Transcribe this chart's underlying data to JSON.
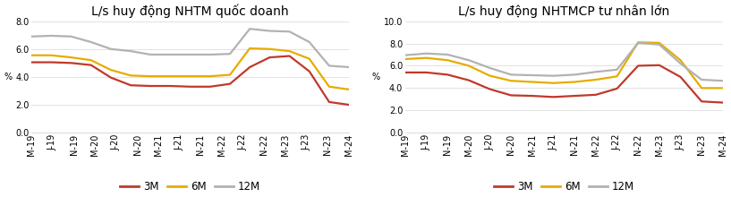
{
  "chart1": {
    "title": "L/s huy động NHTM quốc doanh",
    "ylim": [
      0.0,
      8.0
    ],
    "yticks": [
      0.0,
      2.0,
      4.0,
      6.0,
      8.0
    ],
    "xtick_labels": [
      "M-19",
      "J-19",
      "N-19",
      "M-20",
      "J-20",
      "N-20",
      "M-21",
      "J-21",
      "N-21",
      "M-22",
      "J-22",
      "N-22",
      "M-23",
      "J-23",
      "N-23",
      "M-24"
    ],
    "series": {
      "3M": {
        "color": "#c0392b",
        "values": [
          5.05,
          5.05,
          5.0,
          4.85,
          3.95,
          3.4,
          3.35,
          3.35,
          3.3,
          3.3,
          3.5,
          4.7,
          5.4,
          5.5,
          4.4,
          2.2,
          2.0
        ]
      },
      "6M": {
        "color": "#e6ac00",
        "values": [
          5.55,
          5.55,
          5.4,
          5.2,
          4.5,
          4.1,
          4.05,
          4.05,
          4.05,
          4.05,
          4.15,
          6.05,
          6.0,
          5.85,
          5.3,
          3.3,
          3.1
        ]
      },
      "12M": {
        "color": "#b2b2b2",
        "values": [
          6.9,
          6.95,
          6.9,
          6.5,
          6.0,
          5.85,
          5.6,
          5.6,
          5.6,
          5.6,
          5.65,
          7.45,
          7.3,
          7.25,
          6.5,
          4.8,
          4.7
        ]
      }
    }
  },
  "chart2": {
    "title": "L/s huy động NHTMCP tư nhân lớn",
    "ylim": [
      0.0,
      10.0
    ],
    "yticks": [
      0.0,
      2.0,
      4.0,
      6.0,
      8.0,
      10.0
    ],
    "xtick_labels": [
      "M-19",
      "J-19",
      "N-19",
      "M-20",
      "J-20",
      "N-20",
      "M-21",
      "J-21",
      "N-21",
      "M-22",
      "J-22",
      "N-22",
      "M-23",
      "J-23",
      "N-23",
      "M-24"
    ],
    "series": {
      "3M": {
        "color": "#c0392b",
        "values": [
          5.4,
          5.4,
          5.2,
          4.7,
          3.9,
          3.35,
          3.3,
          3.2,
          3.3,
          3.4,
          3.95,
          6.0,
          6.05,
          5.0,
          2.8,
          2.7
        ]
      },
      "6M": {
        "color": "#e6ac00",
        "values": [
          6.6,
          6.7,
          6.5,
          6.0,
          5.1,
          4.65,
          4.55,
          4.45,
          4.55,
          4.75,
          5.05,
          8.1,
          8.05,
          6.5,
          4.0,
          4.0
        ]
      },
      "12M": {
        "color": "#b2b2b2",
        "values": [
          6.95,
          7.1,
          7.0,
          6.5,
          5.8,
          5.2,
          5.15,
          5.1,
          5.2,
          5.45,
          5.65,
          8.05,
          7.9,
          6.2,
          4.75,
          4.65
        ]
      }
    }
  },
  "ylabel": "%",
  "line_width": 1.6,
  "legend_items": [
    "3M",
    "6M",
    "12M"
  ],
  "legend_colors": [
    "#c0392b",
    "#e6ac00",
    "#b2b2b2"
  ],
  "title_fontsize": 10,
  "tick_fontsize": 7,
  "legend_fontsize": 8.5
}
